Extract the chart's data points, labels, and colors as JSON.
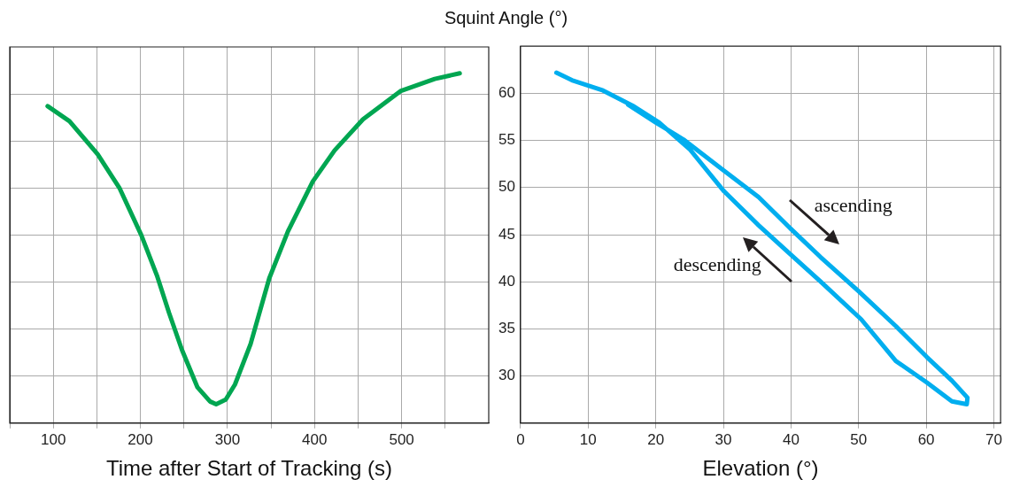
{
  "chart_data": [
    {
      "type": "line",
      "xlabel": "Time after Start of Tracking (s)",
      "xlim": [
        50,
        600
      ],
      "xticks": [
        {
          "value": 50,
          "label": null
        },
        100,
        {
          "value": 150,
          "label": null
        },
        200,
        {
          "value": 250,
          "label": null
        },
        300,
        {
          "value": 350,
          "label": null
        },
        400,
        {
          "value": 450,
          "label": null
        },
        500,
        {
          "value": 550,
          "label": null
        }
      ],
      "ylim": [
        25,
        65
      ],
      "yticks": [
        30,
        35,
        40,
        45,
        50,
        55,
        60
      ],
      "tick_labels": "x",
      "grid": true,
      "marker": "none",
      "line_style": "solid",
      "series": [
        {
          "color": "#00a651",
          "x": [
            93.5,
            118.6,
            150.9,
            176,
            201,
            219,
            233,
            247.7,
            265.6,
            280,
            287,
            298,
            308.6,
            326.5,
            348,
            369.5,
            398,
            423,
            455.6,
            498.6,
            538,
            566.7
          ],
          "values": [
            58.7,
            57.1,
            53.6,
            50,
            45,
            40.7,
            36.7,
            32.8,
            28.8,
            27.3,
            27.0,
            27.5,
            29.1,
            33.4,
            40.4,
            45.4,
            50.7,
            54,
            57.3,
            60.3,
            61.6,
            62.2
          ]
        }
      ]
    },
    {
      "type": "line",
      "ylabel": "Squint Angle (°)",
      "xlabel": "Elevation (°)",
      "xlim": [
        0,
        71
      ],
      "xticks": [
        0,
        10,
        20,
        30,
        40,
        50,
        60,
        70
      ],
      "ylim": [
        25,
        65
      ],
      "yticks": [
        30,
        35,
        40,
        45,
        50,
        55,
        60
      ],
      "grid": true,
      "marker": "none",
      "line_style": "solid",
      "annotations": [
        "ascending",
        "descending"
      ],
      "series": [
        {
          "color": "#00aeef",
          "x": [
            15.9,
            20,
            24.1,
            29.7,
            35.2,
            40,
            44.4,
            50,
            55.5,
            60.1,
            63.8,
            66.1,
            66,
            63.8,
            60.1,
            55.5,
            50.4,
            44.4,
            39.8,
            35.2,
            30.1,
            25.1,
            20.5,
            16.8,
            12.2,
            7.6,
            5.3
          ],
          "values": [
            58.8,
            56.9,
            55.1,
            52,
            49,
            45.6,
            42.6,
            39,
            35.3,
            32,
            29.5,
            27.7,
            27.0,
            27.3,
            29.3,
            31.6,
            36,
            40,
            43,
            46,
            49.6,
            54,
            56.9,
            58.6,
            60.3,
            61.4,
            62.2
          ]
        }
      ]
    }
  ]
}
